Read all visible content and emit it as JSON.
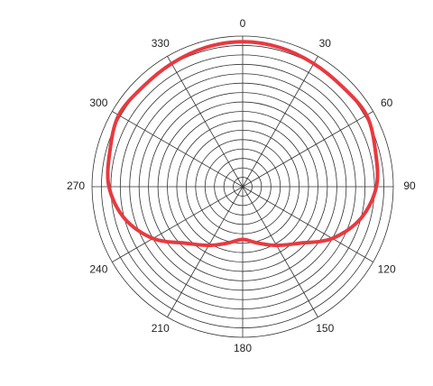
{
  "chart_data": {
    "type": "polar",
    "theta": [
      0,
      15,
      30,
      45,
      60,
      75,
      90,
      105,
      120,
      135,
      150,
      165,
      180,
      195,
      210,
      225,
      240,
      255,
      270,
      285,
      300,
      315,
      330,
      345
    ],
    "series": [
      {
        "color": "#e8393f",
        "values": [
          15.4,
          15.3,
          15.1,
          15.0,
          15.2,
          14.6,
          14.2,
          13.0,
          11.0,
          8.5,
          7.2,
          6.2,
          5.6,
          6.2,
          7.2,
          8.5,
          11.0,
          13.0,
          14.2,
          14.6,
          15.2,
          15.0,
          15.1,
          15.3
        ]
      }
    ],
    "rlim": [
      0,
      16
    ],
    "rticks": [
      1,
      2,
      3,
      4,
      5,
      6,
      7,
      8,
      9,
      10,
      11,
      12,
      13,
      14,
      15,
      16
    ],
    "thetaticks": [
      0,
      30,
      60,
      90,
      120,
      150,
      180,
      210,
      240,
      270,
      300,
      330
    ],
    "grid": true
  }
}
